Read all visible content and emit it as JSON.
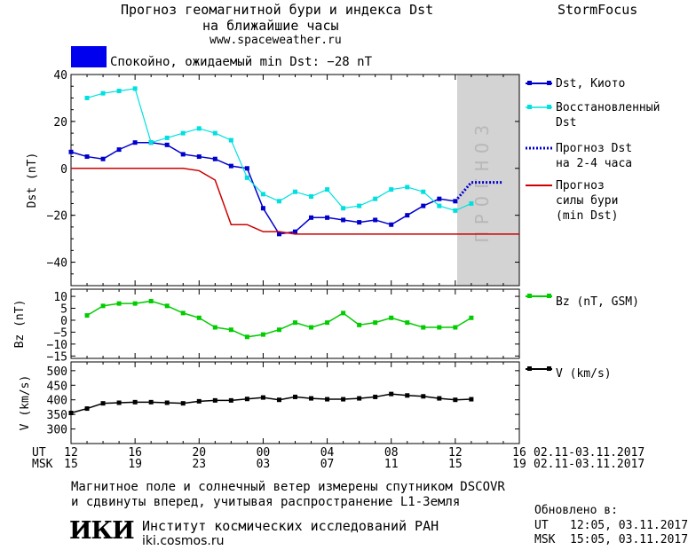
{
  "header": {
    "title_line1": "Прогноз геомагнитной бури и индекса Dst",
    "title_line2": "на ближайшие часы",
    "site": "www.spaceweather.ru",
    "brand": "StormFocus"
  },
  "status": {
    "text": "Спокойно, ожидаемый min Dst: −28 nT",
    "color": "#0000ee"
  },
  "forecast_label": "ПРОГНОЗ",
  "x_axis": {
    "ut_label": "UT",
    "msk_label": "MSK",
    "ut_ticks": [
      "12",
      "16",
      "20",
      "00",
      "04",
      "08",
      "12",
      "16"
    ],
    "msk_ticks": [
      "15",
      "19",
      "23",
      "03",
      "07",
      "11",
      "15",
      "19"
    ],
    "date_range_ut": "02.11-03.11.2017",
    "date_range_msk": "02.11-03.11.2017"
  },
  "legend": {
    "dst_kyoto": "Dst, Киото",
    "restored_l1": "Восстановленный",
    "restored_l2": "Dst",
    "forecast_dst_l1": "Прогноз Dst",
    "forecast_dst_l2": "на 2-4 часа",
    "storm_l1": "Прогноз",
    "storm_l2": "силы бури",
    "storm_l3": "(min Dst)",
    "bz": "Bz (nT, GSM)",
    "v": "V (km/s)"
  },
  "footer": {
    "note_line1": "Магнитное поле и солнечный ветер измерены спутником DSCOVR",
    "note_line2": "и сдвинуты вперед, учитывая распространение L1-Земля",
    "institute": "Институт космических исследований РАН",
    "institute_site": "iki.cosmos.ru",
    "logo_text": "ИКИ",
    "updated_label": "Обновлено в:",
    "updated_ut_label": "UT",
    "updated_ut": "12:05, 03.11.2017",
    "updated_msk_label": "MSK",
    "updated_msk": "15:05, 03.11.2017"
  },
  "colors": {
    "dst": "#0000cc",
    "restored": "#00e0e0",
    "forecast": "#0000cc",
    "storm": "#cc0000",
    "bz": "#00cc00",
    "v": "#000000",
    "shade": "#d3d3d3"
  },
  "chart_data": [
    {
      "type": "line",
      "panel": "dst",
      "ylabel": "Dst (nT)",
      "ylim": [
        -50,
        40
      ],
      "yticks": [
        40,
        20,
        0,
        -20,
        -40
      ],
      "xlim": [
        0,
        28
      ],
      "forecast_region_start": 24,
      "series": [
        {
          "name": "Dst, Киото",
          "marker": "square",
          "x": [
            0,
            1,
            2,
            3,
            4,
            5,
            6,
            7,
            8,
            9,
            10,
            11,
            12,
            13,
            14,
            15,
            16,
            17,
            18,
            19,
            20,
            21,
            22,
            23,
            24
          ],
          "y": [
            7,
            5,
            4,
            8,
            11,
            11,
            10,
            6,
            5,
            4,
            1,
            0,
            -17,
            -28,
            -27,
            -21,
            -21,
            -22,
            -23,
            -22,
            -24,
            -20,
            -16,
            -13,
            -14
          ]
        },
        {
          "name": "Восстановленный Dst",
          "marker": "square",
          "x": [
            1,
            2,
            3,
            4,
            5,
            6,
            7,
            8,
            9,
            10,
            11,
            12,
            13,
            14,
            15,
            16,
            17,
            18,
            19,
            20,
            21,
            22,
            23,
            24,
            25
          ],
          "y": [
            30,
            32,
            33,
            34,
            11,
            13,
            15,
            17,
            15,
            12,
            -4,
            -11,
            -14,
            -10,
            -12,
            -9,
            -17,
            -16,
            -13,
            -9,
            -8,
            -10,
            -16,
            -18,
            -15
          ]
        },
        {
          "name": "Прогноз Dst на 2-4 часа",
          "style": "dotted",
          "x": [
            24,
            25,
            26,
            27
          ],
          "y": [
            -14,
            -6,
            -6,
            -6
          ]
        },
        {
          "name": "Прогноз силы бури (min Dst)",
          "style": "step",
          "x": [
            0,
            5,
            7,
            8,
            9,
            10,
            11,
            12,
            13,
            14,
            28
          ],
          "y": [
            0,
            0,
            0,
            -1,
            -5,
            -24,
            -24,
            -27,
            -27,
            -28,
            -28
          ]
        }
      ]
    },
    {
      "type": "line",
      "panel": "bz",
      "ylabel": "Bz (nT)",
      "ylim": [
        -16,
        13
      ],
      "yticks": [
        10,
        5,
        0,
        -5,
        -10,
        -15
      ],
      "series": [
        {
          "name": "Bz (nT, GSM)",
          "marker": "square",
          "x": [
            1,
            2,
            3,
            4,
            5,
            6,
            7,
            8,
            9,
            10,
            11,
            12,
            13,
            14,
            15,
            16,
            17,
            18,
            19,
            20,
            21,
            22,
            23,
            24,
            25
          ],
          "y": [
            2,
            6,
            7,
            7,
            8,
            6,
            3,
            1,
            -3,
            -4,
            -7,
            -6,
            -4,
            -1,
            -3,
            -1,
            3,
            -2,
            -1,
            1,
            -1,
            -3,
            -3,
            -3,
            1
          ]
        }
      ]
    },
    {
      "type": "line",
      "panel": "v",
      "ylabel": "V (km/s)",
      "ylim": [
        250,
        530
      ],
      "yticks": [
        500,
        450,
        400,
        350,
        300
      ],
      "series": [
        {
          "name": "V (km/s)",
          "marker": "square",
          "x": [
            0,
            1,
            2,
            3,
            4,
            5,
            6,
            7,
            8,
            9,
            10,
            11,
            12,
            13,
            14,
            15,
            16,
            17,
            18,
            19,
            20,
            21,
            22,
            23,
            24,
            25
          ],
          "y": [
            355,
            370,
            388,
            390,
            392,
            392,
            390,
            388,
            395,
            398,
            398,
            403,
            408,
            400,
            410,
            405,
            402,
            402,
            405,
            410,
            420,
            415,
            412,
            405,
            400,
            402
          ]
        }
      ]
    }
  ]
}
